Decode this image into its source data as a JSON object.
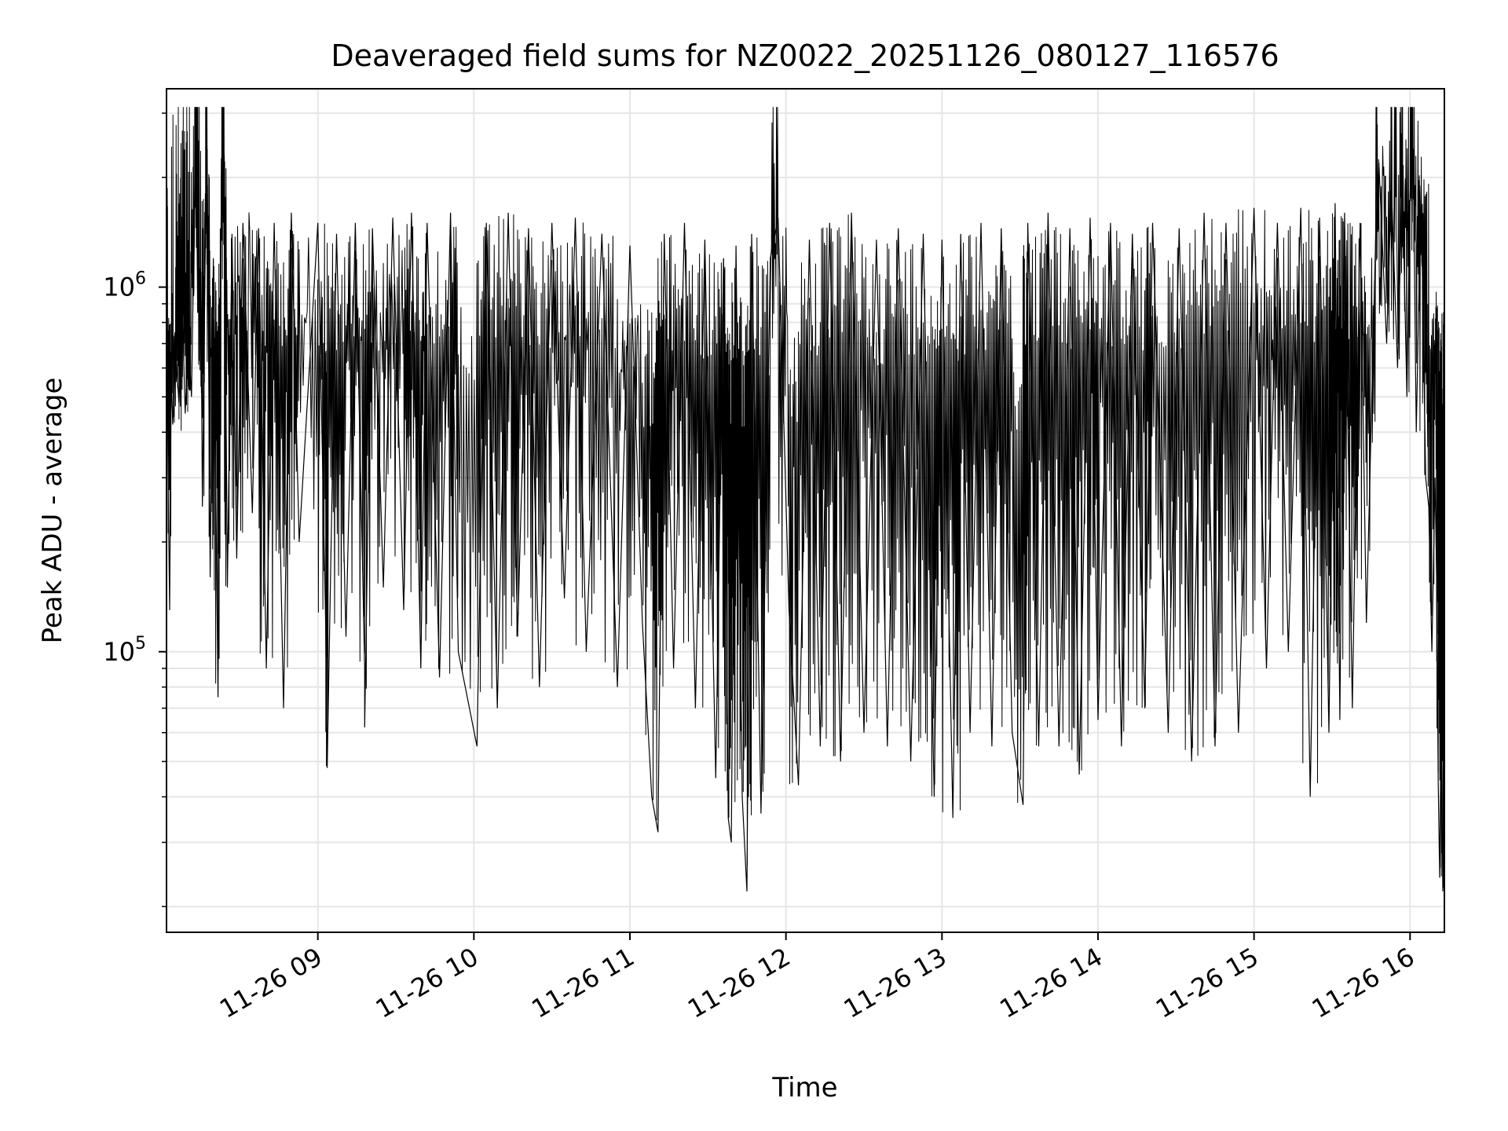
{
  "chart_data": {
    "type": "line",
    "title": "Deaveraged field sums for NZ0022_20251126_080127_116576",
    "xlabel": "Time",
    "ylabel": "Peak ADU - average",
    "yscale": "log",
    "ylim": [
      17000,
      3500000
    ],
    "x_unit": "hours since 11-26 00:00",
    "xlim": [
      8.03,
      16.22
    ],
    "grid": true,
    "line_color": "#000000",
    "grid_color": "#e6e6e6",
    "x_ticks": [
      {
        "value": 9,
        "label": "11-26 09"
      },
      {
        "value": 10,
        "label": "11-26 10"
      },
      {
        "value": 11,
        "label": "11-26 11"
      },
      {
        "value": 12,
        "label": "11-26 12"
      },
      {
        "value": 13,
        "label": "11-26 13"
      },
      {
        "value": 14,
        "label": "11-26 14"
      },
      {
        "value": 15,
        "label": "11-26 15"
      },
      {
        "value": 16,
        "label": "11-26 16"
      }
    ],
    "y_major_ticks": [
      {
        "value": 100000,
        "base": "10",
        "exp": "5"
      },
      {
        "value": 1000000,
        "base": "10",
        "exp": "6"
      }
    ],
    "y_minor_ticks": [
      20000,
      30000,
      40000,
      50000,
      60000,
      70000,
      80000,
      90000,
      200000,
      300000,
      400000,
      500000,
      600000,
      700000,
      800000,
      900000,
      2000000,
      3000000
    ],
    "series": [
      {
        "name": "Peak ADU - average",
        "points": [
          [
            8.03,
            1400000
          ],
          [
            8.04,
            300000
          ],
          [
            8.05,
            130000
          ],
          [
            8.06,
            600000
          ],
          [
            8.07,
            420000
          ],
          [
            8.09,
            650000
          ],
          [
            8.11,
            480000
          ],
          [
            8.13,
            900000
          ],
          [
            8.15,
            450000
          ],
          [
            8.17,
            750000
          ],
          [
            8.19,
            500000
          ],
          [
            8.21,
            1800000
          ],
          [
            8.22,
            2700000
          ],
          [
            8.23,
            850000
          ],
          [
            8.25,
            1100000
          ],
          [
            8.26,
            250000
          ],
          [
            8.28,
            1500000
          ],
          [
            8.29,
            2400000
          ],
          [
            8.31,
            160000
          ],
          [
            8.33,
            1200000
          ],
          [
            8.36,
            75000
          ],
          [
            8.38,
            1500000
          ],
          [
            8.4,
            2300000
          ],
          [
            8.42,
            150000
          ],
          [
            8.45,
            1400000
          ],
          [
            8.48,
            180000
          ],
          [
            8.52,
            1500000
          ],
          [
            8.58,
            240000
          ],
          [
            8.62,
            1450000
          ],
          [
            8.67,
            90000
          ],
          [
            8.72,
            1500000
          ],
          [
            8.78,
            70000
          ],
          [
            8.83,
            1600000
          ],
          [
            8.88,
            200000
          ],
          [
            9.0,
            1500000
          ],
          [
            9.05,
            120000
          ],
          [
            9.06,
            48000
          ],
          [
            9.12,
            1400000
          ],
          [
            9.18,
            110000
          ],
          [
            9.24,
            1500000
          ],
          [
            9.3,
            90000
          ],
          [
            9.3,
            62000
          ],
          [
            9.35,
            1450000
          ],
          [
            9.42,
            150000
          ],
          [
            9.48,
            1550000
          ],
          [
            9.55,
            130000
          ],
          [
            9.6,
            1600000
          ],
          [
            9.66,
            90000
          ],
          [
            9.7,
            1500000
          ],
          [
            9.78,
            85000
          ],
          [
            9.85,
            1600000
          ],
          [
            9.9,
            100000
          ],
          [
            10.02,
            55000
          ],
          [
            10.08,
            1500000
          ],
          [
            10.15,
            70000
          ],
          [
            10.22,
            1600000
          ],
          [
            10.28,
            110000
          ],
          [
            10.35,
            1450000
          ],
          [
            10.42,
            80000
          ],
          [
            10.5,
            1500000
          ],
          [
            10.58,
            140000
          ],
          [
            10.65,
            1550000
          ],
          [
            10.72,
            100000
          ],
          [
            10.82,
            1400000
          ],
          [
            10.92,
            80000
          ],
          [
            11.0,
            1300000
          ],
          [
            11.08,
            120000
          ],
          [
            11.14,
            40000
          ],
          [
            11.18,
            32000
          ],
          [
            11.22,
            1400000
          ],
          [
            11.28,
            90000
          ],
          [
            11.35,
            1500000
          ],
          [
            11.42,
            70000
          ],
          [
            11.48,
            1350000
          ],
          [
            11.55,
            45000
          ],
          [
            11.6,
            1200000
          ],
          [
            11.63,
            35000
          ],
          [
            11.65,
            30000
          ],
          [
            11.68,
            1300000
          ],
          [
            11.72,
            40000
          ],
          [
            11.75,
            22000
          ],
          [
            11.78,
            1400000
          ],
          [
            11.84,
            36000
          ],
          [
            11.9,
            1200000
          ],
          [
            11.95,
            1550000
          ],
          [
            12.02,
            130000
          ],
          [
            12.08,
            43000
          ],
          [
            12.15,
            1350000
          ],
          [
            12.22,
            55000
          ],
          [
            12.28,
            1500000
          ],
          [
            12.35,
            50000
          ],
          [
            12.42,
            1600000
          ],
          [
            12.5,
            60000
          ],
          [
            12.58,
            1350000
          ],
          [
            12.65,
            55000
          ],
          [
            12.72,
            1450000
          ],
          [
            12.8,
            50000
          ],
          [
            12.88,
            1400000
          ],
          [
            12.95,
            40000
          ],
          [
            13.0,
            1350000
          ],
          [
            13.07,
            35000
          ],
          [
            13.12,
            1400000
          ],
          [
            13.18,
            60000
          ],
          [
            13.25,
            1500000
          ],
          [
            13.32,
            55000
          ],
          [
            13.38,
            1450000
          ],
          [
            13.45,
            60000
          ],
          [
            13.52,
            38000
          ],
          [
            13.55,
            1500000
          ],
          [
            13.62,
            55000
          ],
          [
            13.68,
            1600000
          ],
          [
            13.75,
            55000
          ],
          [
            13.82,
            1450000
          ],
          [
            13.88,
            46000
          ],
          [
            13.95,
            1550000
          ],
          [
            14.0,
            65000
          ],
          [
            14.08,
            1500000
          ],
          [
            14.15,
            55000
          ],
          [
            14.22,
            1400000
          ],
          [
            14.3,
            70000
          ],
          [
            14.35,
            1500000
          ],
          [
            14.45,
            60000
          ],
          [
            14.52,
            1450000
          ],
          [
            14.6,
            50000
          ],
          [
            14.68,
            1600000
          ],
          [
            14.75,
            55000
          ],
          [
            14.82,
            1500000
          ],
          [
            14.9,
            60000
          ],
          [
            15.0,
            1650000
          ],
          [
            15.08,
            90000
          ],
          [
            15.15,
            1500000
          ],
          [
            15.22,
            100000
          ],
          [
            15.3,
            1650000
          ],
          [
            15.36,
            40000
          ],
          [
            15.42,
            1550000
          ],
          [
            15.48,
            60000
          ],
          [
            15.52,
            1700000
          ],
          [
            15.55,
            65000
          ],
          [
            15.58,
            1600000
          ],
          [
            15.63,
            70000
          ],
          [
            15.68,
            1500000
          ],
          [
            15.72,
            120000
          ],
          [
            15.78,
            1400000
          ],
          [
            15.8,
            2200000
          ],
          [
            15.85,
            700000
          ],
          [
            15.88,
            1900000
          ],
          [
            15.92,
            600000
          ],
          [
            15.95,
            2000000
          ],
          [
            15.98,
            500000
          ],
          [
            16.0,
            1800000
          ],
          [
            16.02,
            2400000
          ],
          [
            16.04,
            400000
          ],
          [
            16.07,
            1900000
          ],
          [
            16.1,
            300000
          ],
          [
            16.12,
            250000
          ],
          [
            16.14,
            100000
          ],
          [
            16.16,
            300000
          ],
          [
            16.17,
            160000
          ],
          [
            16.18,
            45000
          ],
          [
            16.19,
            24000
          ],
          [
            16.2,
            70000
          ],
          [
            16.21,
            22000
          ],
          [
            16.22,
            75000
          ]
        ]
      }
    ]
  }
}
